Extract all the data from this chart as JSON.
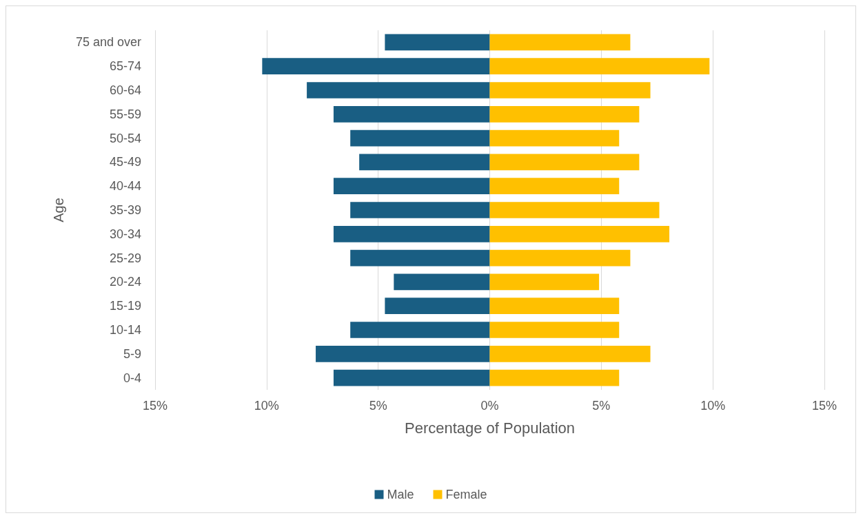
{
  "chart_data": {
    "type": "bar",
    "orientation": "horizontal",
    "xlabel": "Percentage of Population",
    "ylabel": "Age",
    "categories": [
      "75 and over",
      "65-74",
      "60-64",
      "55-59",
      "50-54",
      "45-49",
      "40-44",
      "35-39",
      "30-34",
      "25-29",
      "20-24",
      "15-19",
      "10-14",
      "5-9",
      "0-4"
    ],
    "series": [
      {
        "name": "Male",
        "color": "#195e83",
        "values": [
          -4.7,
          -10.2,
          -8.2,
          -7.0,
          -6.25,
          -5.85,
          -7.0,
          -6.25,
          -7.0,
          -6.25,
          -4.3,
          -4.7,
          -6.25,
          -7.8,
          -7.0
        ]
      },
      {
        "name": "Female",
        "color": "#ffc000",
        "values": [
          6.3,
          9.85,
          7.2,
          6.7,
          5.8,
          6.7,
          5.8,
          7.6,
          8.05,
          6.3,
          4.9,
          5.8,
          5.8,
          7.2,
          5.8
        ]
      }
    ],
    "xlim": [
      -15,
      15
    ],
    "xticks": [
      {
        "value": -15,
        "label": "15%"
      },
      {
        "value": -10,
        "label": "10%"
      },
      {
        "value": -5,
        "label": "5%"
      },
      {
        "value": 0,
        "label": "0%"
      },
      {
        "value": 5,
        "label": "5%"
      },
      {
        "value": 10,
        "label": "10%"
      },
      {
        "value": 15,
        "label": "15%"
      }
    ],
    "grid": "x",
    "legend": "bottom",
    "stacked": true
  }
}
